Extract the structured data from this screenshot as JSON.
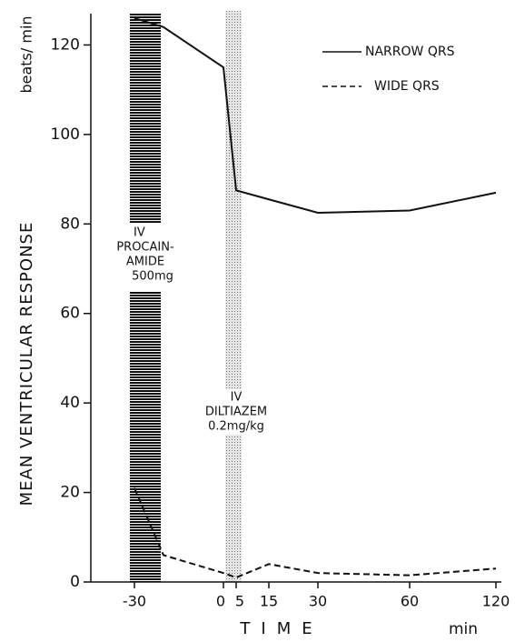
{
  "chart_data": {
    "type": "line",
    "y_label": "MEAN VENTRICULAR RESPONSE",
    "y_unit": "beats/ min",
    "x_label": "TIME",
    "x_unit": "min",
    "categories": [
      "-30",
      null,
      "0",
      "5",
      "15",
      "30",
      "60",
      "120"
    ],
    "series": [
      {
        "name": "NARROW QRS",
        "color": "#111111",
        "dash": "solid",
        "values": [
          126,
          124,
          115,
          87.5,
          85.5,
          82.5,
          83,
          87
        ]
      },
      {
        "name": "WIDE QRS",
        "color": "#111111",
        "dash": "dashed",
        "values": [
          21,
          6,
          2,
          1,
          4,
          2,
          1.5,
          3
        ]
      }
    ],
    "ylim": [
      0,
      127
    ],
    "yticks": [
      0,
      20,
      40,
      60,
      80,
      100,
      120
    ],
    "annotations": [
      {
        "lines": [
          "IV",
          "PROCAIN-",
          "AMIDE",
          "500mg"
        ]
      },
      {
        "lines": [
          "IV",
          "DILTIAZEM",
          "0.2mg/kg"
        ]
      }
    ],
    "legend": "top-right"
  }
}
